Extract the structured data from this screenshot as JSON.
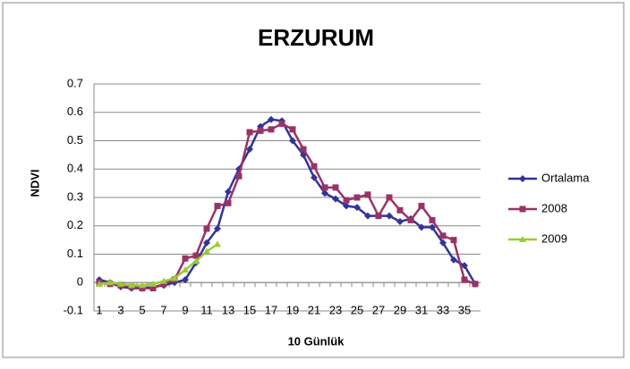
{
  "chart_data": {
    "type": "line",
    "title": "ERZURUM",
    "x_label": "10 Günlük",
    "y_label": "NDVI",
    "categories": [
      1,
      null,
      3,
      null,
      5,
      null,
      7,
      null,
      9,
      null,
      11,
      null,
      13,
      null,
      15,
      null,
      17,
      null,
      19,
      null,
      21,
      null,
      23,
      null,
      25,
      null,
      27,
      null,
      29,
      null,
      31,
      null,
      33,
      null,
      35,
      null
    ],
    "series": [
      {
        "name": "Ortalama",
        "color": "#333399",
        "marker": "diamond",
        "values": [
          0.01,
          0.0,
          -0.015,
          -0.02,
          -0.02,
          -0.015,
          -0.01,
          0.0,
          0.01,
          0.07,
          0.14,
          0.19,
          0.32,
          0.4,
          0.47,
          0.55,
          0.575,
          0.57,
          0.5,
          0.45,
          0.37,
          0.315,
          0.295,
          0.27,
          0.265,
          0.235,
          0.235,
          0.235,
          0.215,
          0.225,
          0.195,
          0.195,
          0.14,
          0.08,
          0.06,
          -0.005
        ]
      },
      {
        "name": "2008",
        "color": "#993366",
        "marker": "square",
        "values": [
          0.0,
          -0.005,
          -0.01,
          -0.015,
          -0.02,
          -0.02,
          -0.005,
          0.01,
          0.085,
          0.095,
          0.19,
          0.27,
          0.28,
          0.375,
          0.53,
          0.535,
          0.54,
          0.56,
          0.54,
          0.47,
          0.41,
          0.335,
          0.335,
          0.29,
          0.3,
          0.31,
          0.235,
          0.3,
          0.255,
          0.22,
          0.27,
          0.22,
          0.165,
          0.15,
          0.01,
          -0.005
        ]
      },
      {
        "name": "2009",
        "color": "#99cc33",
        "marker": "triangle",
        "values": [
          -0.005,
          0.0,
          -0.005,
          -0.01,
          -0.01,
          -0.005,
          0.005,
          0.015,
          0.045,
          0.075,
          0.11,
          0.135,
          null,
          null,
          null,
          null,
          null,
          null,
          null,
          null,
          null,
          null,
          null,
          null,
          null,
          null,
          null,
          null,
          null,
          null,
          null,
          null,
          null,
          null,
          null,
          null
        ]
      }
    ],
    "ylim": [
      -0.1,
      0.7
    ],
    "yticks": [
      -0.1,
      0,
      0.1,
      0.2,
      0.3,
      0.4,
      0.5,
      0.6,
      0.7
    ],
    "grid": true,
    "legend": "right"
  }
}
